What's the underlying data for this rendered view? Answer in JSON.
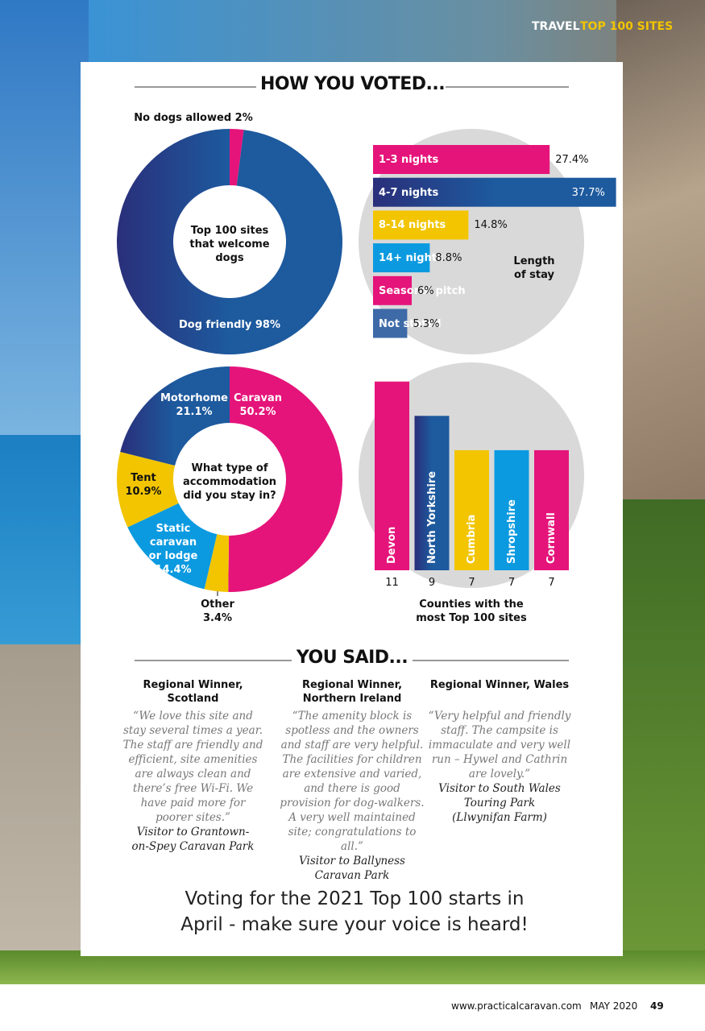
{
  "header": {
    "section": "TRAVEL",
    "highlight": "TOP 100 SITES"
  },
  "heading": "HOW YOU VOTED...",
  "chart_data": [
    {
      "type": "donut",
      "center_label": "Top 100 sites that welcome dogs",
      "categories": [
        "No dogs allowed",
        "Dog friendly"
      ],
      "values": [
        2,
        98
      ],
      "value_labels": [
        "2%",
        "98%"
      ],
      "colors": [
        "#e5147a",
        "#1d5a9e"
      ]
    },
    {
      "type": "hbar",
      "title": "Length of stay",
      "categories": [
        "1-3 nights",
        "4-7 nights",
        "8-14 nights",
        "14+ nights",
        "Seasonal pitch",
        "Not stated"
      ],
      "values": [
        27.4,
        37.7,
        14.8,
        8.8,
        6,
        5.3
      ],
      "value_labels": [
        "27.4%",
        "37.7%",
        "14.8%",
        "8.8%",
        "6%",
        "5.3%"
      ],
      "colors": [
        "#e5147a",
        "#1d5a9e",
        "#f2c500",
        "#0b9ae0",
        "#e5147a",
        "#3e6aa8"
      ]
    },
    {
      "type": "donut",
      "center_label": "What type of accommodation did you stay in?",
      "categories": [
        "Caravan",
        "Other",
        "Static caravan or lodge",
        "Tent",
        "Motorhome"
      ],
      "values": [
        50.2,
        3.4,
        14.4,
        10.9,
        21.1
      ],
      "value_labels": [
        "50.2%",
        "3.4%",
        "14.4%",
        "10.9%",
        "21.1%"
      ],
      "colors": [
        "#e5147a",
        "#f2c500",
        "#0b9ae0",
        "#f2c500",
        "#1d5a9e"
      ]
    },
    {
      "type": "vbar",
      "title": "Counties with the most Top 100 sites",
      "categories": [
        "Devon",
        "North Yorkshire",
        "Cumbria",
        "Shropshire",
        "Cornwall"
      ],
      "values": [
        11,
        9,
        7,
        7,
        7
      ],
      "colors": [
        "#e5147a",
        "#1d5a9e",
        "#f2c500",
        "#0b9ae0",
        "#e5147a"
      ]
    }
  ],
  "subheading": "YOU SAID...",
  "quotes": [
    {
      "title": "Regional Winner, Scotland",
      "quote": "“We love this site and stay several times a year. The staff are friendly and efficient, site amenities are always clean and there’s free Wi-Fi. We have paid more for poorer sites.”",
      "attribution": "Visitor to Grantown-on-Spey Caravan Park"
    },
    {
      "title": "Regional Winner, Northern Ireland",
      "quote": "“The amenity block is spotless and the owners and staff are very helpful. The facilities for children are extensive and varied, and there is good provision for dog-walkers. A very well maintained site; congratulations to all.”",
      "attribution": "Visitor to Ballyness Caravan Park"
    },
    {
      "title": "Regional Winner, Wales",
      "quote": "“Very helpful and friendly staff. The campsite is immaculate and very well run – Hywel and Cathrin are lovely.”",
      "attribution": "Visitor to South Wales Touring Park (Llwynifan Farm)"
    }
  ],
  "cta": "Voting for the 2021 Top 100 starts in April - make sure your voice is heard!",
  "footer": {
    "website": "www.practicalcaravan.com",
    "issue": "MAY 2020",
    "page": "49"
  }
}
